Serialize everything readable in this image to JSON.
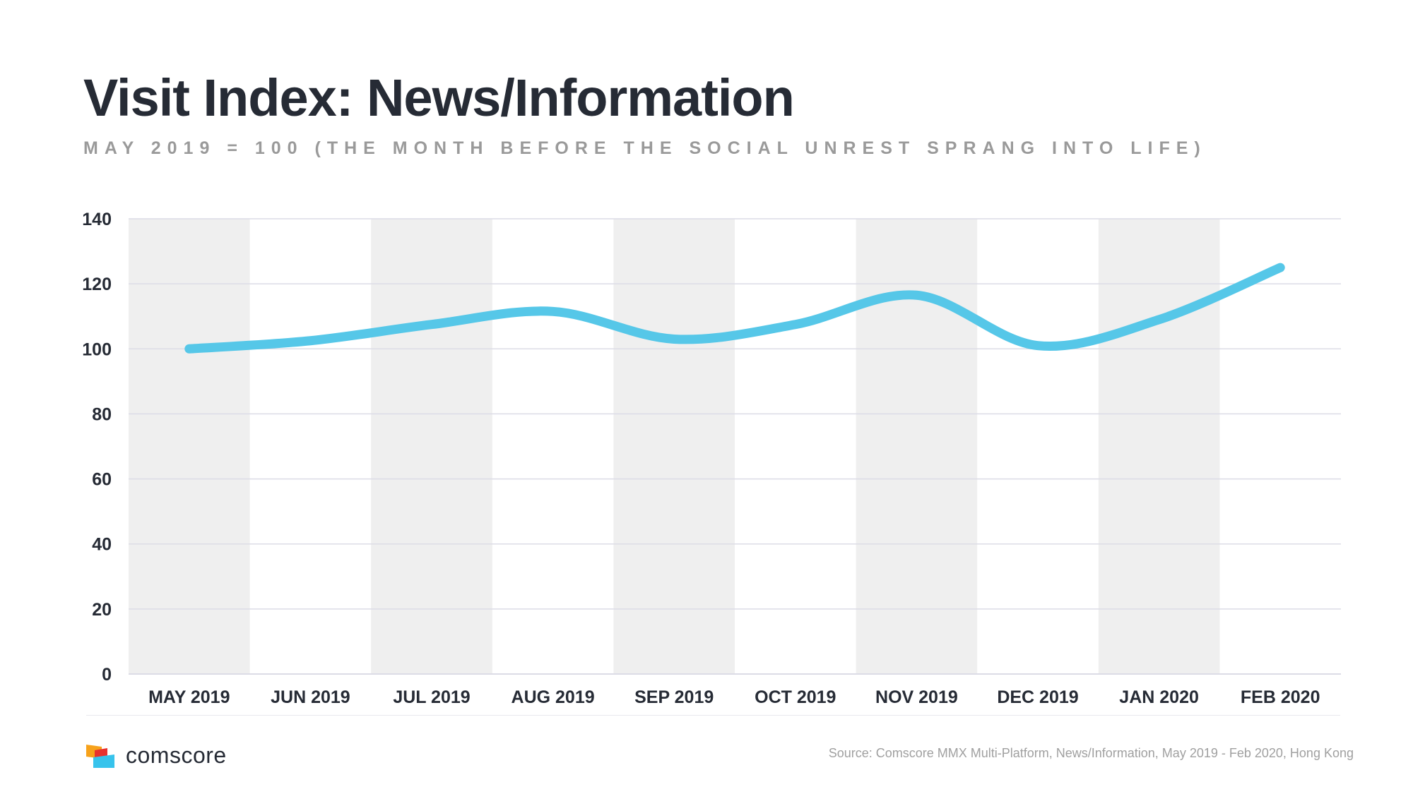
{
  "title": "Visit Index: News/Information",
  "subtitle": "MAY 2019 = 100  (THE MONTH BEFORE THE SOCIAL UNREST SPRANG INTO LIFE)",
  "brand": {
    "name": "comscore"
  },
  "source": "Source: Comscore MMX Multi-Platform, News/Information, May 2019 - Feb 2020, Hong Kong",
  "colors": {
    "line": "#56c7e8",
    "band": "#efefef",
    "grid": "#dcdce6",
    "text": "#262b35"
  },
  "chart_data": {
    "type": "line",
    "title": "Visit Index: News/Information",
    "subtitle": "MAY 2019 = 100  (THE MONTH BEFORE THE SOCIAL UNREST SPRANG INTO LIFE)",
    "xlabel": "",
    "ylabel": "",
    "categories": [
      "MAY 2019",
      "JUN 2019",
      "JUL 2019",
      "AUG 2019",
      "SEP 2019",
      "OCT 2019",
      "NOV 2019",
      "DEC 2019",
      "JAN 2020",
      "FEB 2020"
    ],
    "series": [
      {
        "values": [
          100,
          102.5,
          107.5,
          111.5,
          103,
          107.5,
          116.5,
          101,
          109,
          125
        ]
      }
    ],
    "ylim": [
      0,
      140
    ],
    "yticks": [
      0,
      20,
      40,
      60,
      80,
      100,
      120,
      140
    ],
    "grid": true,
    "alternating_bands": true,
    "legend": "none"
  }
}
